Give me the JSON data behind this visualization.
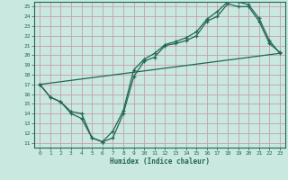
{
  "xlabel": "Humidex (Indice chaleur)",
  "xlim": [
    0,
    23
  ],
  "ylim": [
    11,
    25
  ],
  "xticks": [
    0,
    1,
    2,
    3,
    4,
    5,
    6,
    7,
    8,
    9,
    10,
    11,
    12,
    13,
    14,
    15,
    16,
    17,
    18,
    19,
    20,
    21,
    22,
    23
  ],
  "yticks": [
    11,
    12,
    13,
    14,
    15,
    16,
    17,
    18,
    19,
    20,
    21,
    22,
    23,
    24,
    25
  ],
  "background_color": "#c8e8e0",
  "grid_color": "#c8a0a8",
  "line_color": "#226655",
  "line1_x": [
    0,
    1,
    2,
    3,
    4,
    5,
    6,
    7,
    8,
    9,
    10,
    11,
    12,
    13,
    14,
    15,
    16,
    17,
    18,
    19,
    20,
    21,
    22,
    23
  ],
  "line1_y": [
    17.0,
    15.7,
    15.2,
    14.0,
    13.5,
    11.5,
    11.1,
    12.2,
    14.3,
    18.5,
    19.6,
    20.2,
    21.1,
    21.4,
    21.8,
    22.4,
    23.7,
    24.5,
    25.5,
    25.5,
    25.2,
    23.8,
    21.5,
    20.2
  ],
  "line2_x": [
    0,
    1,
    2,
    3,
    4,
    5,
    6,
    7,
    8,
    9,
    10,
    11,
    12,
    13,
    14,
    15,
    16,
    17,
    18,
    19,
    20,
    21,
    22,
    23
  ],
  "line2_y": [
    17.0,
    15.7,
    15.2,
    14.2,
    14.0,
    11.5,
    11.1,
    11.5,
    14.0,
    17.8,
    19.4,
    19.8,
    21.0,
    21.2,
    21.5,
    22.0,
    23.5,
    24.0,
    25.3,
    25.0,
    25.0,
    23.5,
    21.2,
    20.3
  ],
  "line3_x": [
    0,
    23
  ],
  "line3_y": [
    17.0,
    20.2
  ]
}
